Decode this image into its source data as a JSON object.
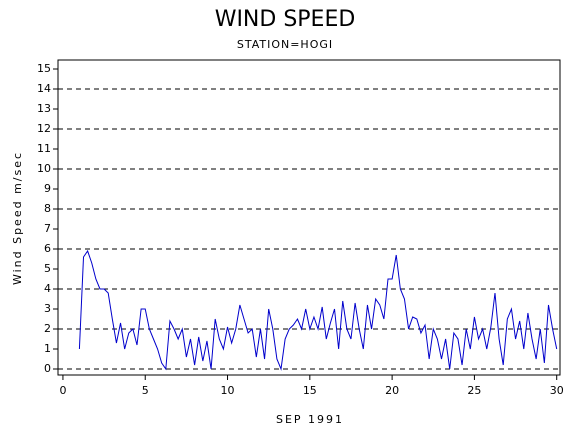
{
  "chart_data": {
    "type": "line",
    "title": "WIND SPEED",
    "subtitle": "STATION=HOGI",
    "x_label": "SEP 1991",
    "y_label": "Wind Speed m/sec",
    "xlim": [
      -0.3,
      30.2
    ],
    "xticks": [
      0,
      5,
      10,
      15,
      20,
      25,
      30
    ],
    "ylim": [
      -0.3,
      15.45
    ],
    "yticks": [
      0,
      1,
      2,
      3,
      4,
      5,
      6,
      7,
      8,
      9,
      10,
      11,
      12,
      13,
      14,
      15
    ],
    "ygrid": [
      0,
      2,
      4,
      6,
      8,
      10,
      12,
      14
    ],
    "x": [
      1,
      1.25,
      1.5,
      1.75,
      2,
      2.25,
      2.5,
      2.75,
      3,
      3.25,
      3.5,
      3.75,
      4,
      4.25,
      4.5,
      4.75,
      5,
      5.25,
      5.5,
      5.75,
      6,
      6.25,
      6.5,
      6.75,
      7,
      7.25,
      7.5,
      7.75,
      8,
      8.25,
      8.5,
      8.75,
      9,
      9.25,
      9.5,
      9.75,
      10,
      10.25,
      10.5,
      10.75,
      11,
      11.25,
      11.5,
      11.75,
      12,
      12.25,
      12.5,
      12.75,
      13,
      13.25,
      13.5,
      13.75,
      14,
      14.25,
      14.5,
      14.75,
      15,
      15.25,
      15.5,
      15.75,
      16,
      16.25,
      16.5,
      16.75,
      17,
      17.25,
      17.5,
      17.75,
      18,
      18.25,
      18.5,
      18.75,
      19,
      19.25,
      19.5,
      19.75,
      20,
      20.25,
      20.5,
      20.75,
      21,
      21.25,
      21.5,
      21.75,
      22,
      22.25,
      22.5,
      22.75,
      23,
      23.25,
      23.5,
      23.75,
      24,
      24.25,
      24.5,
      24.75,
      25,
      25.25,
      25.5,
      25.75,
      26,
      26.25,
      26.5,
      26.75,
      27,
      27.25,
      27.5,
      27.75,
      28,
      28.25,
      28.5,
      28.75,
      29,
      29.25,
      29.5,
      29.75,
      30
    ],
    "series": [
      {
        "color": "#0000cc",
        "values": [
          1.0,
          5.6,
          5.9,
          5.3,
          4.5,
          4.0,
          4.0,
          3.8,
          2.5,
          1.3,
          2.3,
          1.0,
          1.8,
          2.0,
          1.2,
          3.0,
          3.0,
          2.0,
          1.5,
          1.0,
          0.3,
          0.0,
          2.4,
          2.0,
          1.5,
          2.0,
          0.6,
          1.5,
          0.2,
          1.6,
          0.4,
          1.4,
          0.0,
          2.5,
          1.5,
          1.0,
          2.1,
          1.3,
          2.0,
          3.2,
          2.5,
          1.8,
          2.0,
          0.6,
          2.0,
          0.5,
          3.0,
          2.0,
          0.5,
          0.0,
          1.5,
          2.0,
          2.2,
          2.5,
          2.0,
          3.0,
          2.0,
          2.6,
          2.0,
          3.1,
          1.5,
          2.3,
          3.0,
          1.0,
          3.4,
          2.0,
          1.5,
          3.3,
          2.0,
          1.0,
          3.2,
          2.0,
          3.5,
          3.2,
          2.5,
          4.5,
          4.5,
          5.7,
          4.0,
          3.5,
          2.0,
          2.6,
          2.5,
          1.8,
          2.2,
          0.5,
          2.0,
          1.5,
          0.5,
          1.5,
          0.0,
          1.8,
          1.5,
          0.2,
          2.0,
          1.0,
          2.6,
          1.5,
          2.0,
          1.0,
          2.1,
          3.8,
          1.5,
          0.2,
          2.5,
          3.0,
          1.5,
          2.4,
          1.0,
          2.8,
          1.5,
          0.5,
          2.0,
          0.3,
          3.2,
          2.0,
          1.0
        ]
      }
    ]
  }
}
